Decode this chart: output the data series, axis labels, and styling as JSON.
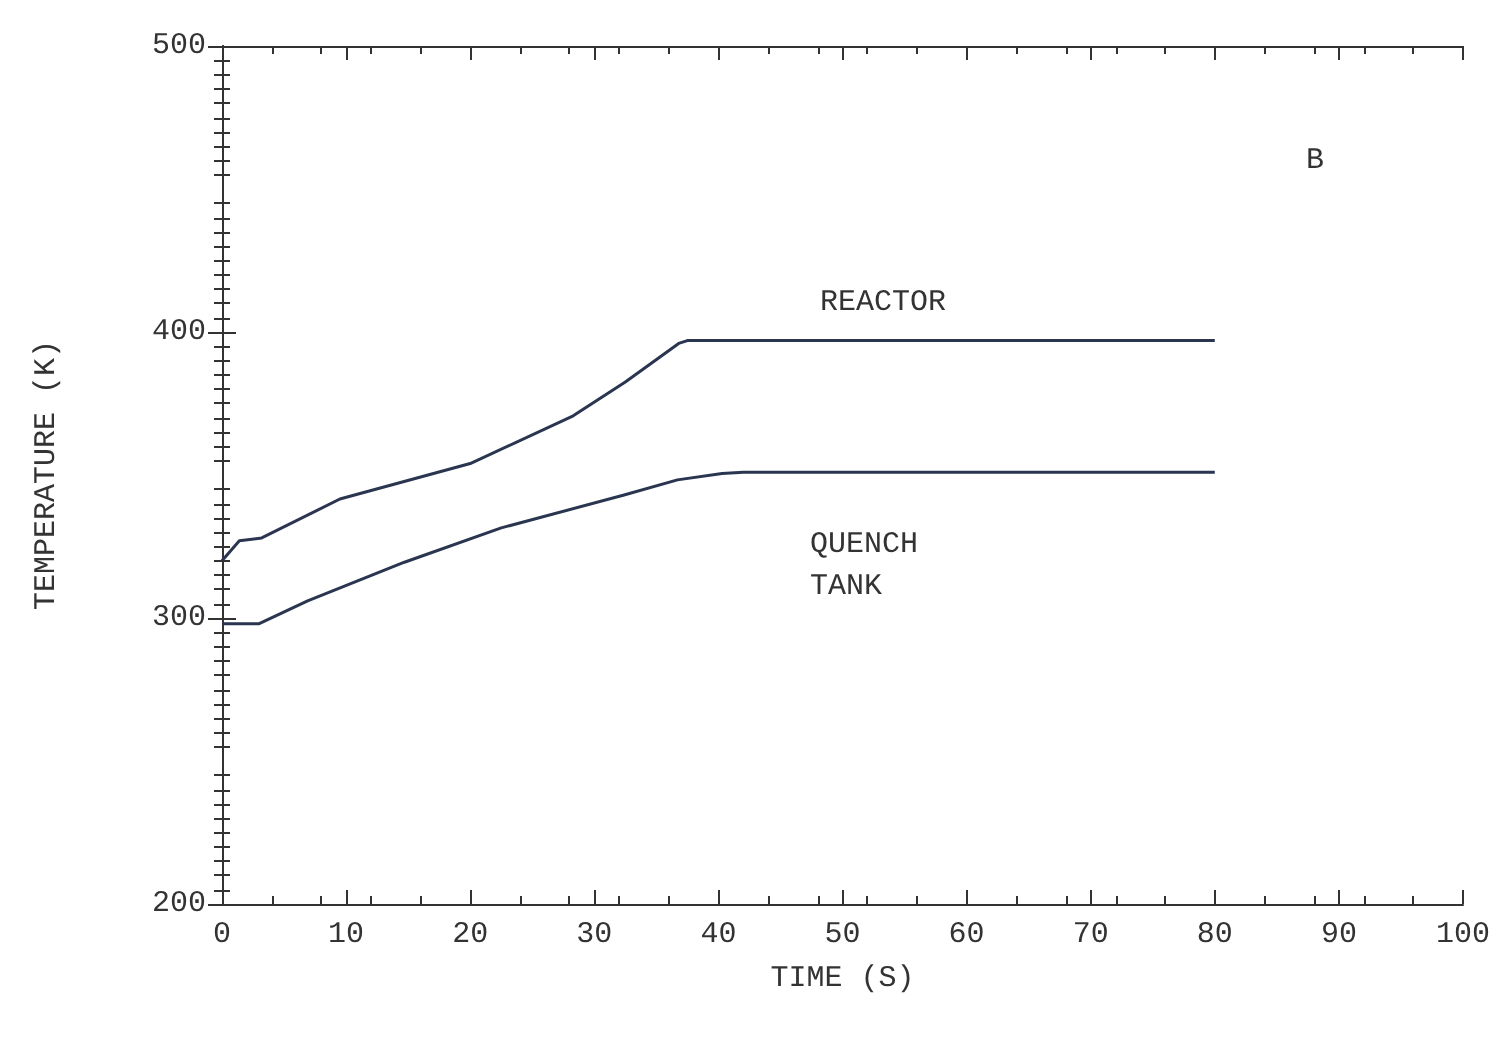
{
  "chart_data": {
    "type": "line",
    "xlabel": "TIME (S)",
    "ylabel": "TEMPERATURE (K)",
    "xlim": [
      0,
      100
    ],
    "xticks": [
      0,
      10,
      20,
      30,
      40,
      50,
      60,
      70,
      80,
      90,
      100
    ],
    "ylim": [
      200,
      500
    ],
    "yticks": [
      200,
      300,
      400,
      500
    ],
    "grid": false,
    "marker": "none",
    "line_style": "solid",
    "series": [
      {
        "color": "#2a3550",
        "x": [
          0,
          1.4,
          3.2,
          9.5,
          20,
          28.3,
          32.5,
          36.8,
          37.5,
          60,
          80
        ],
        "values": [
          320,
          327,
          328,
          341.6,
          354,
          370.7,
          382.5,
          396,
          397,
          397,
          397
        ]
      },
      {
        "color": "#2a3550",
        "x": [
          0,
          3,
          6.9,
          14.7,
          22.5,
          32.4,
          36.7,
          40.3,
          42,
          60,
          80
        ],
        "values": [
          298,
          298,
          306,
          319.5,
          331.5,
          343,
          348.3,
          350.5,
          351,
          351,
          351
        ]
      }
    ],
    "annotations": [
      "REACTOR",
      "QUENCH\nTANK",
      "B"
    ]
  }
}
